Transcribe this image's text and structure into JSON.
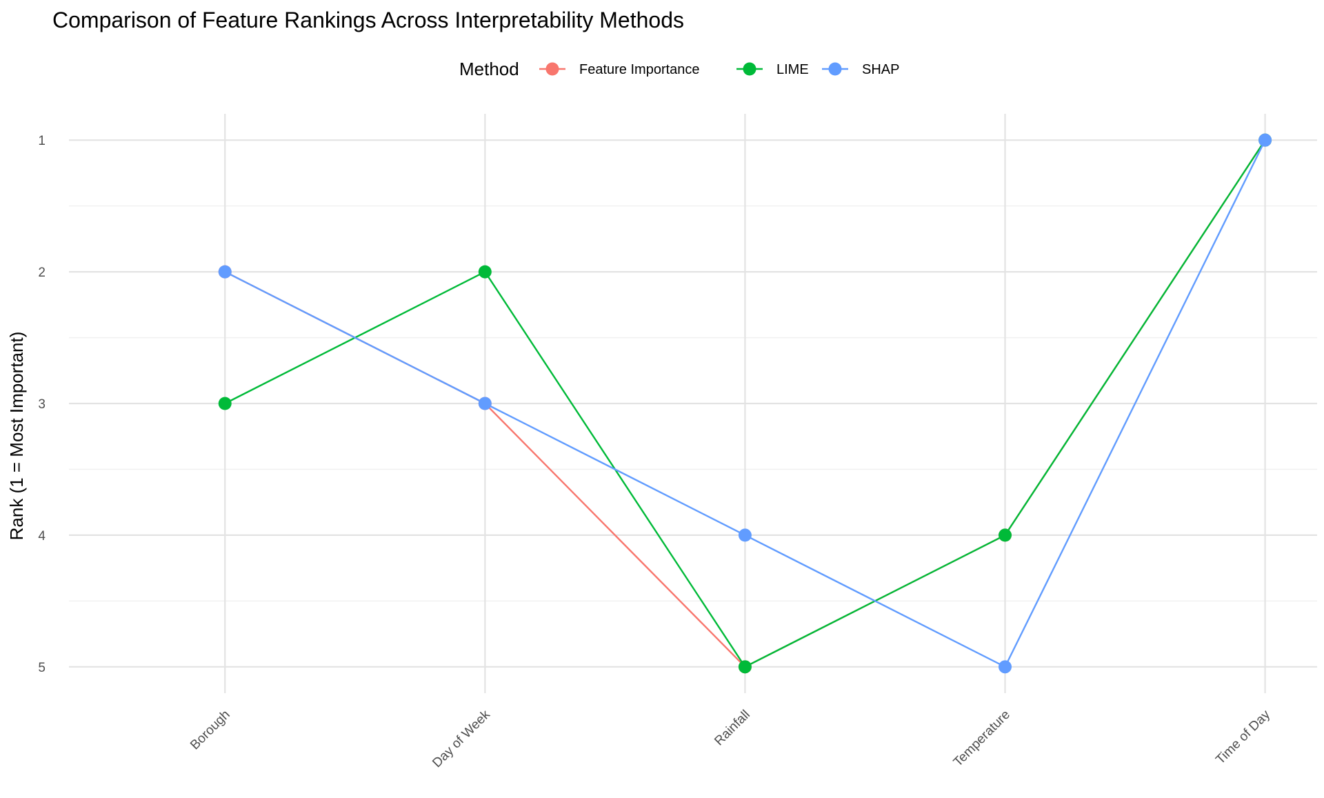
{
  "chart_data": {
    "type": "line",
    "title": "Comparison of Feature Rankings Across Interpretability Methods",
    "xlabel": "",
    "ylabel": "Rank (1 = Most Important)",
    "categories": [
      "Borough",
      "Day of Week",
      "Rainfall",
      "Temperature",
      "Time of Day"
    ],
    "y_ticks": [
      "1",
      "2",
      "3",
      "4",
      "5"
    ],
    "ylim": [
      5.2,
      0.8
    ],
    "y_reversed": true,
    "grid": true,
    "legend": {
      "title": "Method",
      "position": "top"
    },
    "series": [
      {
        "name": "Feature Importance",
        "color": "#F8766D",
        "values": [
          2,
          3,
          5,
          4,
          1
        ]
      },
      {
        "name": "LIME",
        "color": "#00BA38",
        "values": [
          3,
          2,
          5,
          4,
          1
        ]
      },
      {
        "name": "SHAP",
        "color": "#619CFF",
        "values": [
          2,
          3,
          4,
          5,
          1
        ]
      }
    ]
  }
}
